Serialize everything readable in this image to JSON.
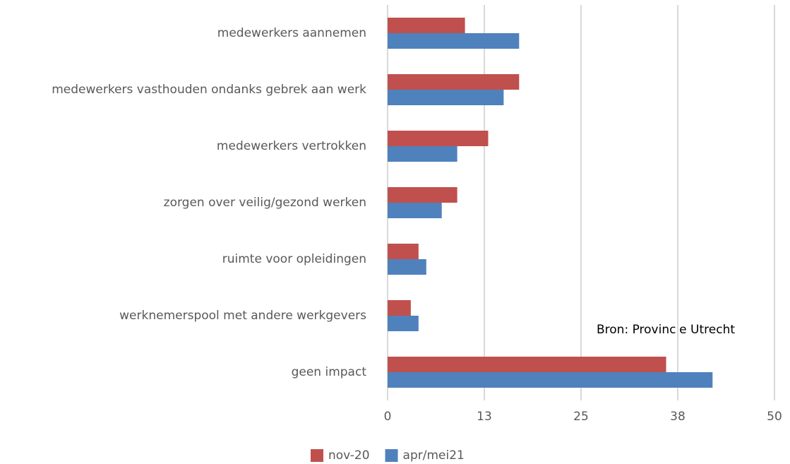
{
  "chart_data": {
    "type": "bar",
    "orientation": "horizontal",
    "categories": [
      "medewerkers aannemen",
      "medewerkers vasthouden ondanks gebrek aan werk",
      "medewerkers vertrokken",
      "zorgen over veilig/gezond werken",
      "ruimte voor opleidingen",
      "werknemerspool met andere werkgevers",
      "geen impact"
    ],
    "series": [
      {
        "name": "nov-20",
        "color": "#c0504d",
        "values": [
          10,
          17,
          13,
          9,
          4,
          3,
          36
        ]
      },
      {
        "name": "apr/mei21",
        "color": "#4f81bd",
        "values": [
          17,
          15,
          9,
          7,
          5,
          4,
          42
        ]
      }
    ],
    "xlim": [
      0,
      50
    ],
    "xticks": [
      0,
      {
        "value": 12.5,
        "label": "13"
      },
      25,
      {
        "value": 37.5,
        "label": "38"
      },
      50
    ],
    "grid": true,
    "legend": "bottom",
    "annotation": "Bron: Provincie Utrecht"
  }
}
